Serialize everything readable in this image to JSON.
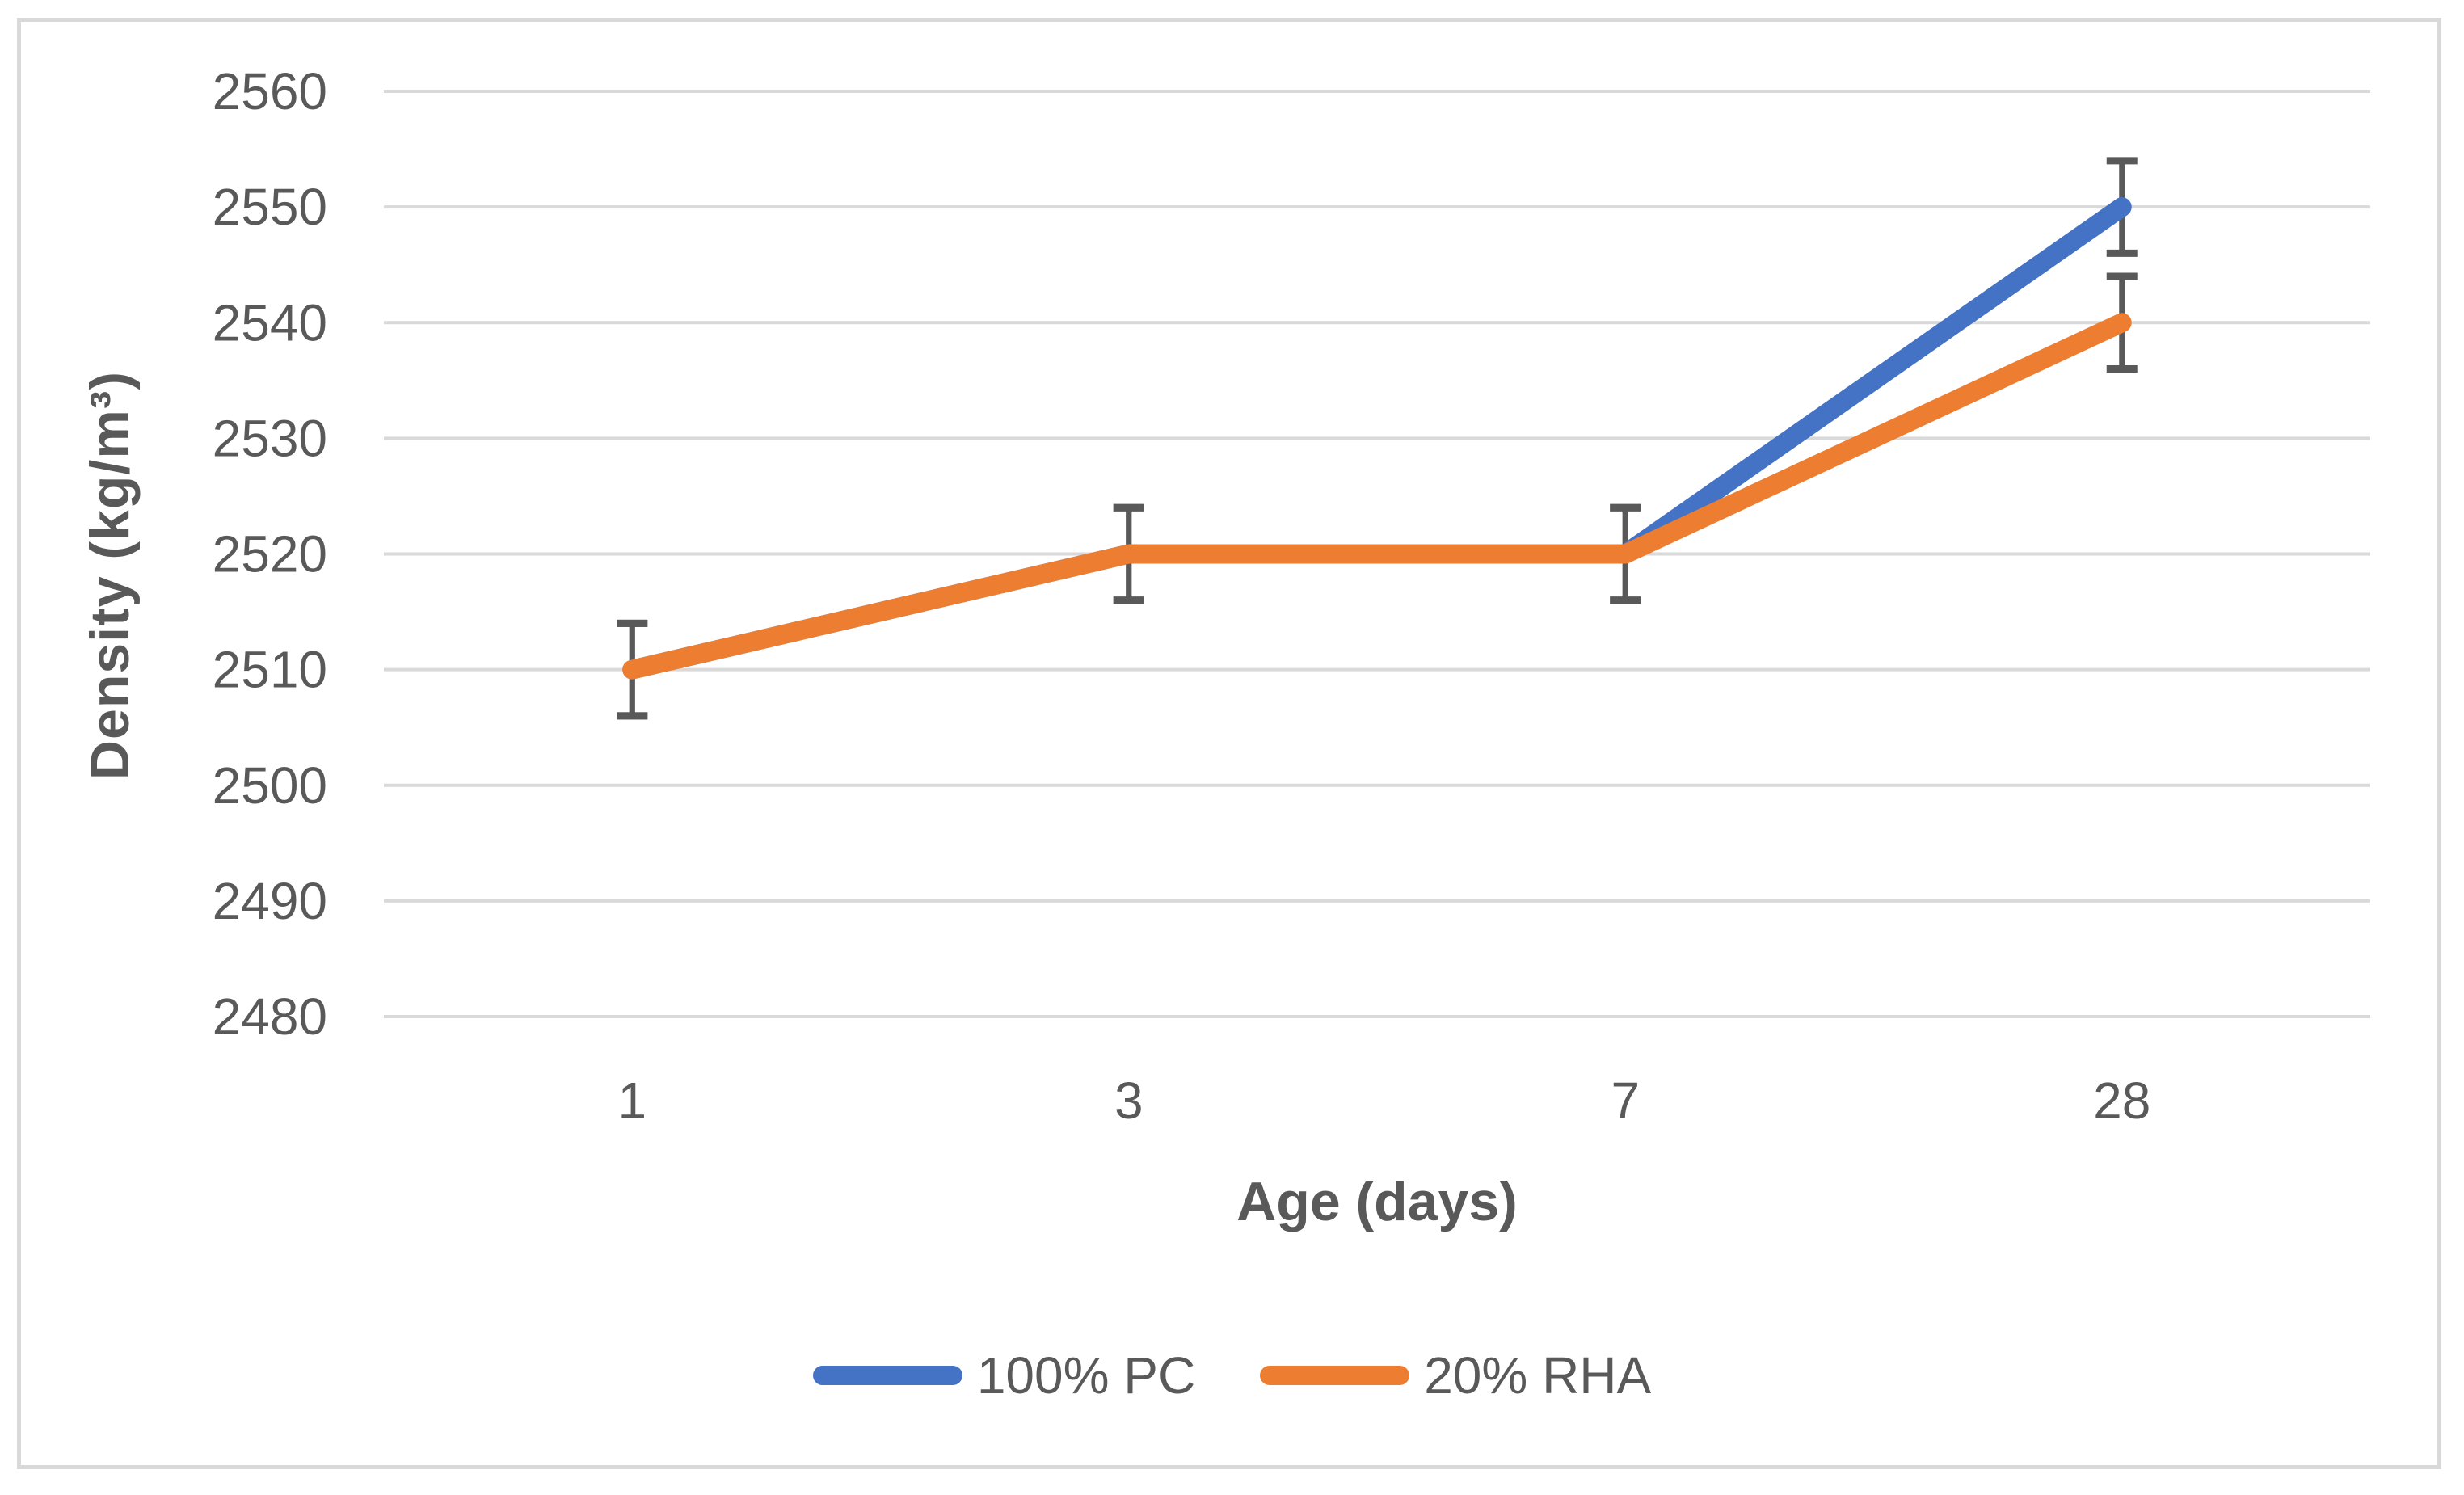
{
  "chart_data": {
    "type": "line",
    "title": "",
    "xlabel": "Age (days)",
    "ylabel": "Density (kg/m³)",
    "categories": [
      "1",
      "3",
      "7",
      "28"
    ],
    "series": [
      {
        "name": "100% PC",
        "color": "#4472C4",
        "values": [
          2510,
          2520,
          2520,
          2550
        ],
        "error_bar": 4
      },
      {
        "name": "20% RHA",
        "color": "#ED7D31",
        "values": [
          2510,
          2520,
          2520,
          2540
        ],
        "error_bar": 4
      }
    ],
    "ylim": [
      2480,
      2560
    ],
    "ytick_step": 10,
    "yticks": [
      "2480",
      "2490",
      "2500",
      "2510",
      "2520",
      "2530",
      "2540",
      "2550",
      "2560"
    ],
    "grid": true,
    "legend_position": "bottom"
  },
  "colors": {
    "gridline": "#D9D9D9",
    "frame_border": "#D9D9D9",
    "axis_text": "#595959",
    "error_bar": "#595959",
    "background": "#FFFFFF"
  }
}
